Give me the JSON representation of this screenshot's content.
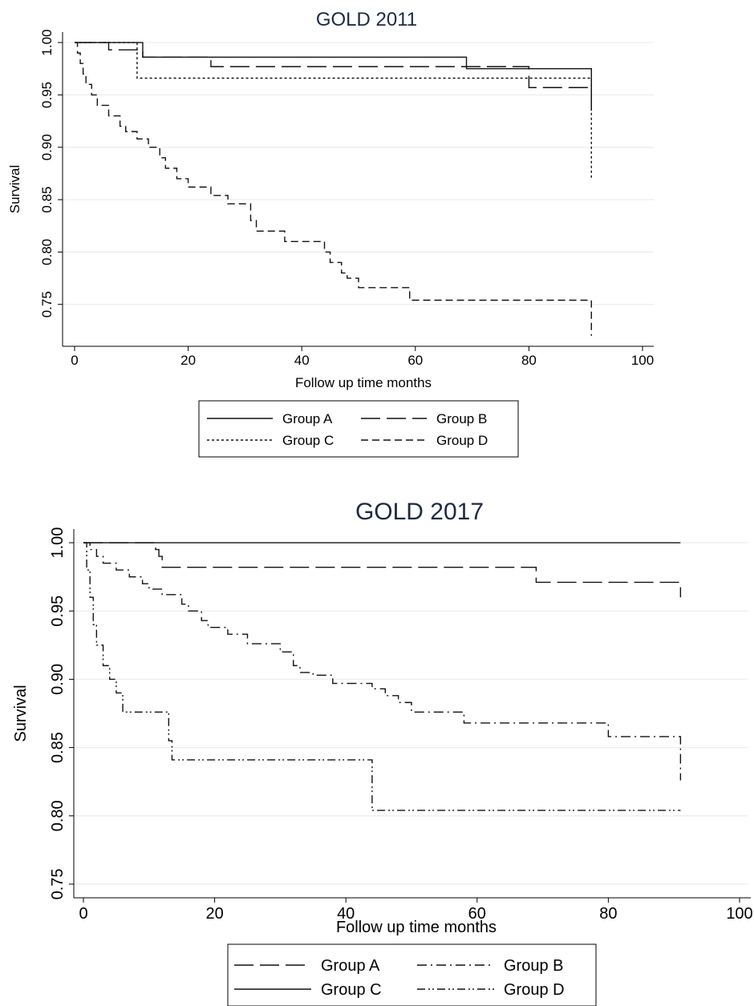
{
  "chart_data": [
    {
      "type": "line",
      "title": "GOLD 2011",
      "xlabel": "Follow up time months",
      "ylabel": "Survival",
      "xlim": [
        0,
        100
      ],
      "ylim": [
        0.71,
        1.01
      ],
      "xticks": [
        0,
        20,
        40,
        60,
        80,
        100
      ],
      "yticks": [
        0.75,
        0.8,
        0.85,
        0.9,
        0.95,
        1.0
      ],
      "ytick_labels": [
        "0.75",
        "0.80",
        "0.85",
        "0.90",
        "0.95",
        "1.00"
      ],
      "grid": "horizontal",
      "legend_position": "bottom",
      "legend_columns": 2,
      "series": [
        {
          "name": "Group A",
          "style": "solid",
          "x": [
            0,
            12,
            69,
            91,
            91
          ],
          "y": [
            1.0,
            0.986,
            0.975,
            0.975,
            0.935
          ]
        },
        {
          "name": "Group B",
          "style": "longdash",
          "x": [
            0,
            6,
            12,
            24,
            80,
            91,
            91
          ],
          "y": [
            1.0,
            0.993,
            0.986,
            0.977,
            0.957,
            0.957,
            0.935
          ]
        },
        {
          "name": "Group C",
          "style": "shortdash",
          "x": [
            0,
            11,
            91,
            91
          ],
          "y": [
            1.0,
            0.966,
            0.966,
            0.87
          ]
        },
        {
          "name": "Group D",
          "style": "dash",
          "x": [
            0,
            0.5,
            1,
            1.5,
            2,
            3,
            4,
            6,
            8,
            9,
            11,
            13,
            15,
            16,
            18,
            20,
            24,
            27,
            31,
            32,
            34,
            37,
            44,
            45,
            47,
            48,
            50,
            59,
            91,
            91
          ],
          "y": [
            1.0,
            0.99,
            0.98,
            0.97,
            0.96,
            0.95,
            0.94,
            0.93,
            0.92,
            0.915,
            0.908,
            0.9,
            0.89,
            0.88,
            0.87,
            0.862,
            0.854,
            0.846,
            0.83,
            0.82,
            0.82,
            0.81,
            0.8,
            0.79,
            0.78,
            0.775,
            0.766,
            0.754,
            0.754,
            0.72
          ]
        }
      ]
    },
    {
      "type": "line",
      "title": "GOLD 2017",
      "xlabel": "Follow up time months",
      "ylabel": "Survival",
      "xlim": [
        0,
        100
      ],
      "ylim": [
        0.74,
        1.01
      ],
      "xticks": [
        0,
        20,
        40,
        60,
        80,
        100
      ],
      "yticks": [
        0.75,
        0.8,
        0.85,
        0.9,
        0.95,
        1.0
      ],
      "ytick_labels": [
        "0.75",
        "0.80",
        "0.85",
        "0.90",
        "0.95",
        "1.00"
      ],
      "grid": "horizontal",
      "legend_position": "bottom",
      "legend_columns": 2,
      "series": [
        {
          "name": "Group A",
          "style": "longdash",
          "x": [
            0,
            11,
            11.5,
            12,
            69,
            91,
            91
          ],
          "y": [
            1.0,
            0.995,
            0.99,
            0.982,
            0.971,
            0.971,
            0.96
          ]
        },
        {
          "name": "Group B",
          "style": "dashdot",
          "x": [
            0,
            1,
            2,
            3,
            5,
            7,
            9,
            10,
            12,
            15,
            16,
            18,
            19,
            22,
            25,
            30,
            32,
            33,
            35,
            38,
            44,
            46,
            48,
            50,
            58,
            80,
            91,
            91
          ],
          "y": [
            1.0,
            0.995,
            0.99,
            0.985,
            0.98,
            0.975,
            0.97,
            0.966,
            0.962,
            0.955,
            0.95,
            0.943,
            0.938,
            0.933,
            0.926,
            0.92,
            0.91,
            0.905,
            0.903,
            0.897,
            0.893,
            0.888,
            0.883,
            0.876,
            0.868,
            0.858,
            0.858,
            0.826
          ]
        },
        {
          "name": "Group C",
          "style": "solid",
          "x": [
            0,
            91
          ],
          "y": [
            1.0,
            1.0
          ]
        },
        {
          "name": "Group D",
          "style": "dashdotdot",
          "x": [
            0,
            0.5,
            1,
            1.5,
            2,
            3,
            4,
            5,
            6,
            13,
            13.5,
            44,
            91
          ],
          "y": [
            1.0,
            0.98,
            0.96,
            0.94,
            0.925,
            0.91,
            0.9,
            0.89,
            0.876,
            0.855,
            0.841,
            0.804,
            0.804
          ]
        }
      ]
    }
  ]
}
